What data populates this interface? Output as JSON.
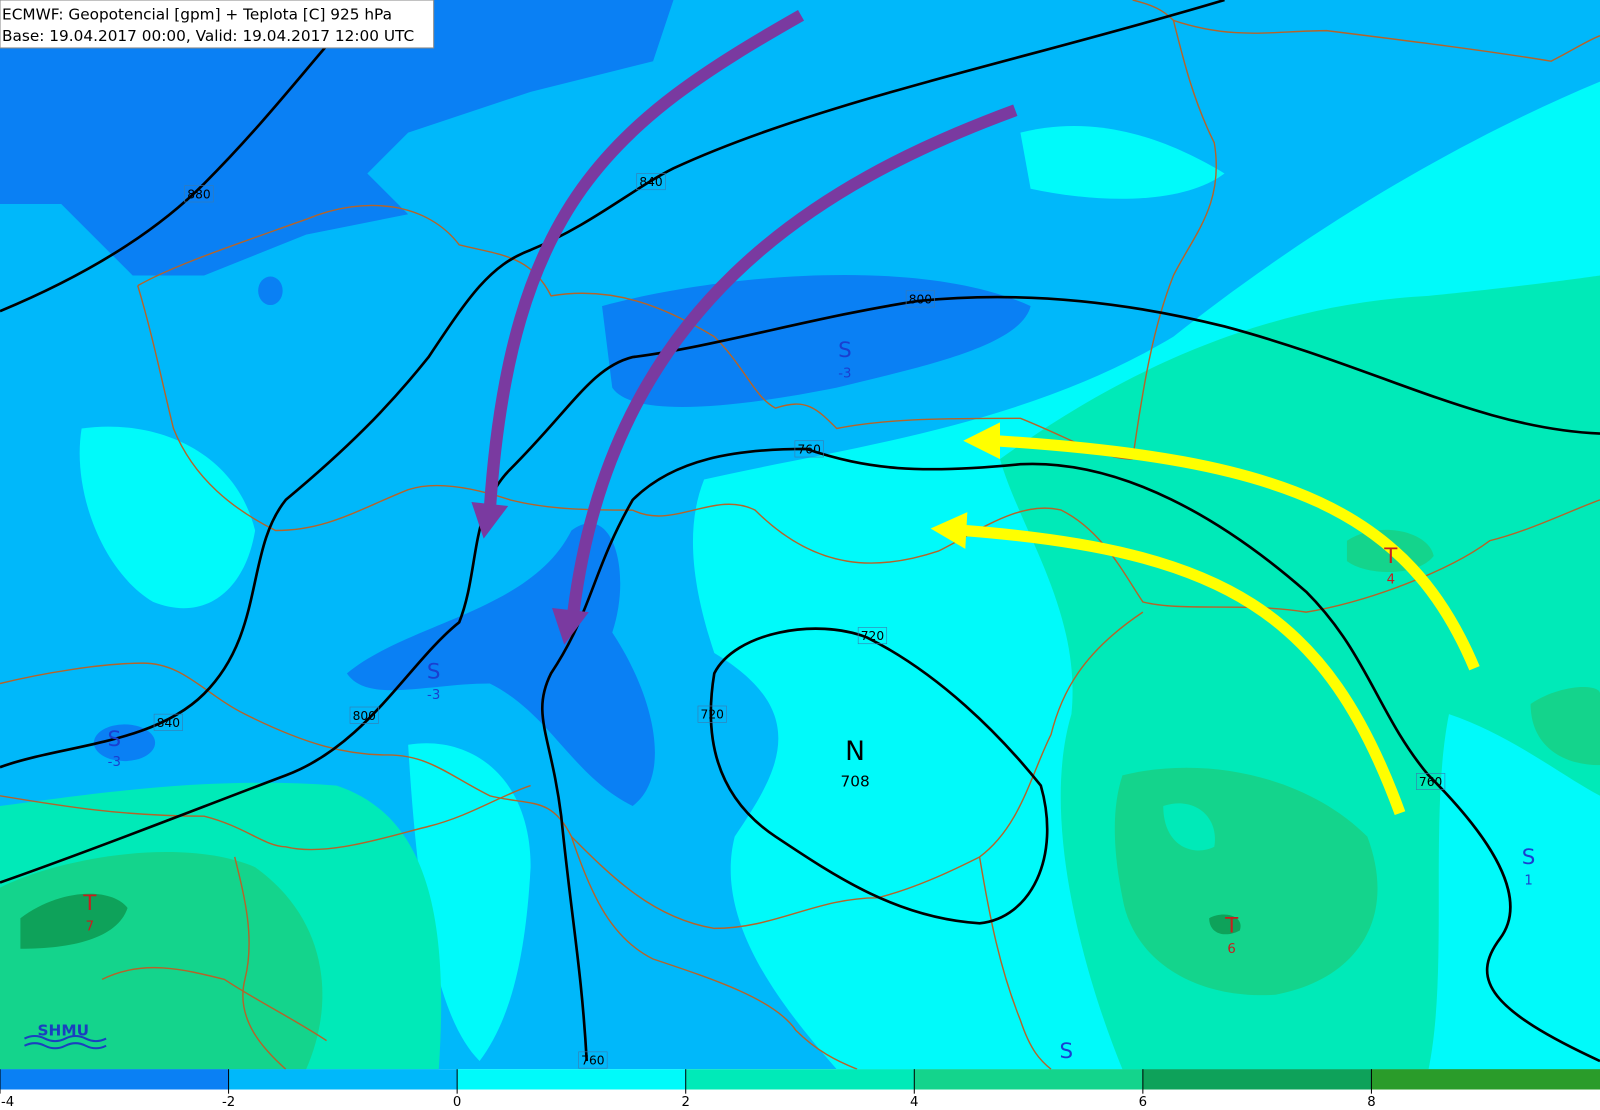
{
  "header": {
    "line1": "ECMWF: Geopotencial [gpm] + Teplota [C] 925 hPa",
    "line2": "Base: 19.04.2017 00:00, Valid: 19.04.2017 12:00 UTC"
  },
  "contour_labels": [
    880,
    840,
    840,
    800,
    800,
    760,
    760,
    760,
    720,
    720
  ],
  "centers": [
    {
      "letter": "S",
      "value": -3
    },
    {
      "letter": "S",
      "value": -3
    },
    {
      "letter": "S",
      "value": -3
    },
    {
      "letter": "N",
      "value": 708
    },
    {
      "letter": "T",
      "value": 7
    },
    {
      "letter": "T",
      "value": 6
    },
    {
      "letter": "T",
      "value": 4
    },
    {
      "letter": "S",
      "value": 1
    },
    {
      "letter": "S"
    }
  ],
  "legend": {
    "ticks": [
      -4,
      -2,
      0,
      2,
      4,
      6,
      8
    ],
    "colors": [
      "#0a80f4",
      "#00b8fa",
      "#00fafa",
      "#00eab8",
      "#14d48c",
      "#0ea25a",
      "#2a9c2a"
    ]
  },
  "logo": "SHMU"
}
